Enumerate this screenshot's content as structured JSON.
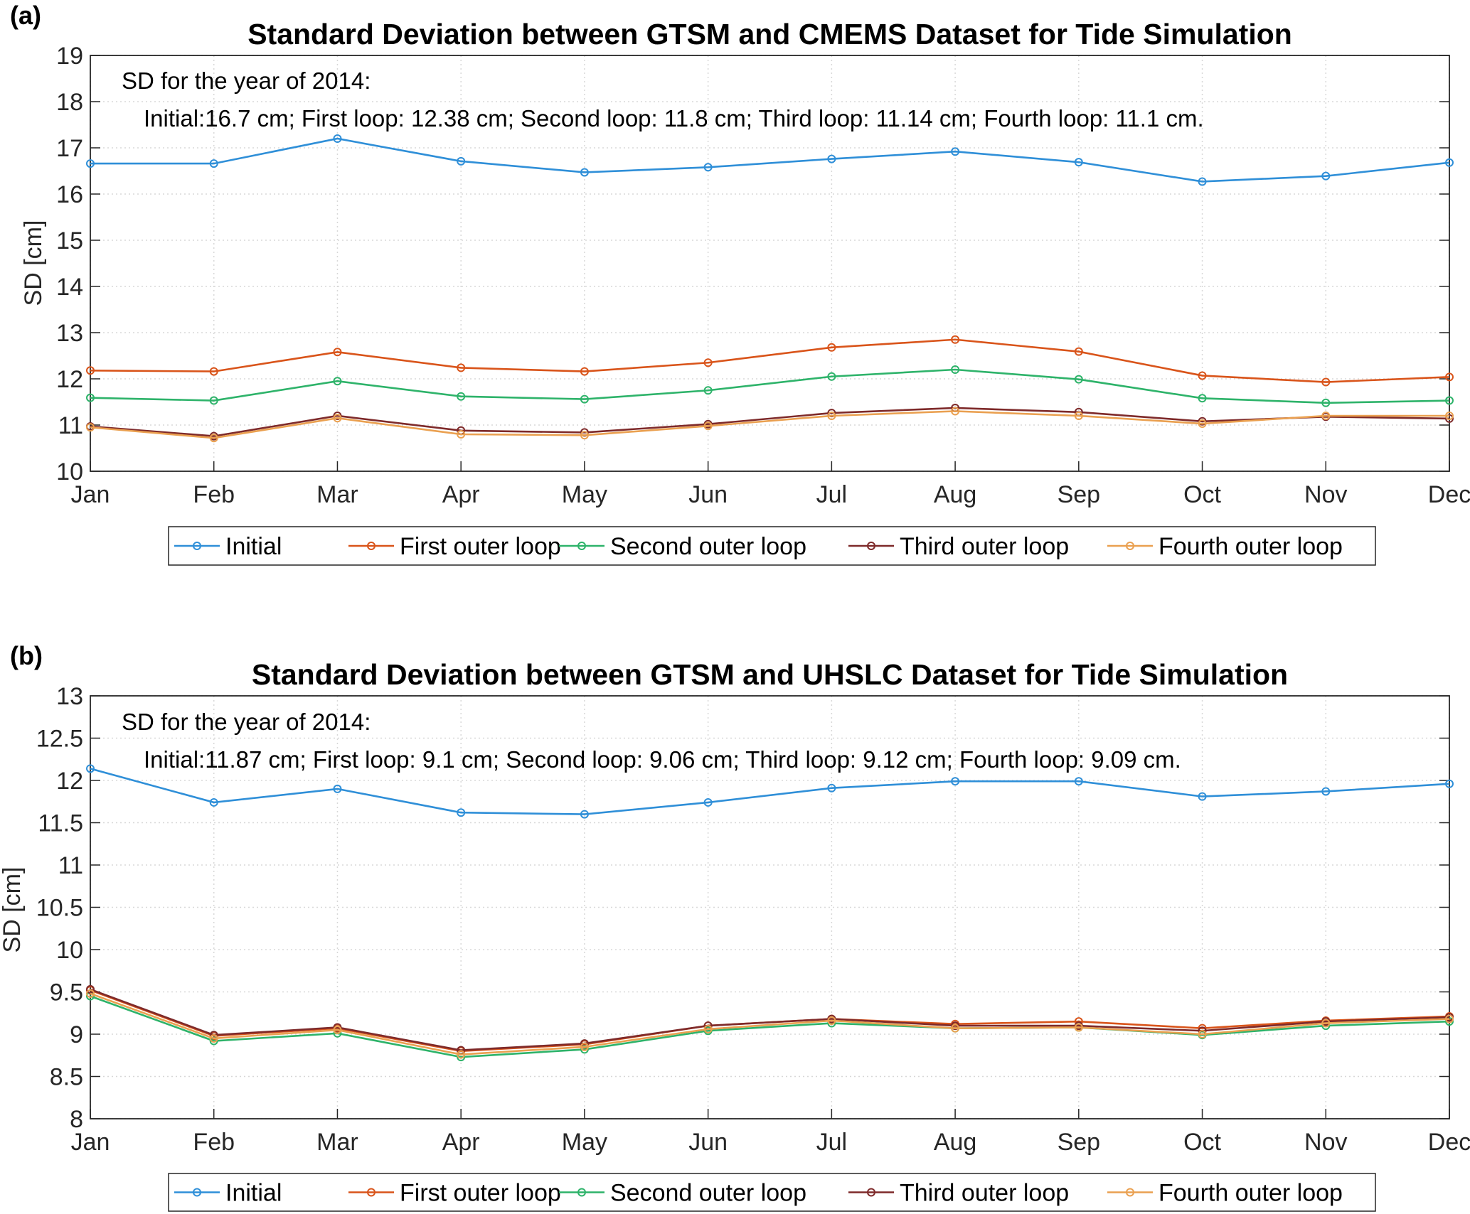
{
  "chart_data": [
    {
      "type": "line",
      "panel_label": "(a)",
      "title": "Standard Deviation between GTSM and CMEMS Dataset for Tide Simulation",
      "annotation": [
        "SD for the year of 2014:",
        "Initial:16.7 cm; First loop: 12.38 cm; Second loop: 11.8 cm; Third loop: 11.14 cm; Fourth loop: 11.1 cm."
      ],
      "xlabel": "",
      "ylabel": "SD [cm]",
      "ylim": [
        10,
        19
      ],
      "yticks": [
        "10",
        "11",
        "12",
        "13",
        "14",
        "15",
        "16",
        "17",
        "18",
        "19"
      ],
      "grid": true,
      "legend_placement": "bottom-outside",
      "categories": [
        "Jan",
        "Feb",
        "Mar",
        "Apr",
        "May",
        "Jun",
        "Jul",
        "Aug",
        "Sep",
        "Oct",
        "Nov",
        "Dec"
      ],
      "series": [
        {
          "name": "Initial",
          "color": "#2f8fd8",
          "values": [
            16.66,
            16.66,
            17.2,
            16.71,
            16.47,
            16.58,
            16.76,
            16.92,
            16.69,
            16.27,
            16.39,
            16.68
          ]
        },
        {
          "name": "First outer loop",
          "color": "#d9541a",
          "values": [
            12.18,
            12.16,
            12.58,
            12.24,
            12.16,
            12.35,
            12.68,
            12.85,
            12.59,
            12.07,
            11.93,
            12.04
          ]
        },
        {
          "name": "Second outer loop",
          "color": "#2eb36a",
          "values": [
            11.59,
            11.53,
            11.95,
            11.62,
            11.56,
            11.75,
            12.05,
            12.2,
            11.99,
            11.58,
            11.48,
            11.53
          ]
        },
        {
          "name": "Third outer loop",
          "color": "#7e2a2a",
          "values": [
            10.97,
            10.76,
            11.2,
            10.88,
            10.84,
            11.02,
            11.26,
            11.37,
            11.28,
            11.08,
            11.18,
            11.14
          ]
        },
        {
          "name": "Fourth outer loop",
          "color": "#eaa050",
          "values": [
            10.95,
            10.72,
            11.15,
            10.8,
            10.78,
            10.98,
            11.2,
            11.3,
            11.2,
            11.03,
            11.2,
            11.2
          ]
        }
      ]
    },
    {
      "type": "line",
      "panel_label": "(b)",
      "title": "Standard Deviation between GTSM and UHSLC Dataset for Tide Simulation",
      "annotation": [
        "SD for the year of 2014:",
        "Initial:11.87 cm; First loop: 9.1 cm; Second loop: 9.06 cm; Third loop: 9.12 cm; Fourth loop: 9.09 cm."
      ],
      "xlabel": "",
      "ylabel": "SD [cm]",
      "ylim": [
        8,
        13
      ],
      "yticks": [
        "8",
        "8.5",
        "9",
        "9.5",
        "10",
        "10.5",
        "11",
        "11.5",
        "12",
        "12.5",
        "13"
      ],
      "grid": true,
      "legend_placement": "bottom-outside",
      "categories": [
        "Jan",
        "Feb",
        "Mar",
        "Apr",
        "May",
        "Jun",
        "Jul",
        "Aug",
        "Sep",
        "Oct",
        "Nov",
        "Dec"
      ],
      "series": [
        {
          "name": "Initial",
          "color": "#2f8fd8",
          "values": [
            12.14,
            11.74,
            11.9,
            11.62,
            11.6,
            11.74,
            11.91,
            11.99,
            11.99,
            11.81,
            11.87,
            11.96
          ]
        },
        {
          "name": "First outer loop",
          "color": "#d9541a",
          "values": [
            9.52,
            8.98,
            9.07,
            8.8,
            8.88,
            9.1,
            9.18,
            9.12,
            9.15,
            9.07,
            9.16,
            9.21
          ]
        },
        {
          "name": "Second outer loop",
          "color": "#2eb36a",
          "values": [
            9.45,
            8.92,
            9.01,
            8.73,
            8.82,
            9.04,
            9.13,
            9.07,
            9.08,
            8.99,
            9.1,
            9.15
          ]
        },
        {
          "name": "Third outer loop",
          "color": "#7e2a2a",
          "values": [
            9.53,
            8.99,
            9.08,
            8.81,
            8.89,
            9.1,
            9.18,
            9.1,
            9.1,
            9.04,
            9.15,
            9.2
          ]
        },
        {
          "name": "Fourth outer loop",
          "color": "#eaa050",
          "values": [
            9.48,
            8.95,
            9.05,
            8.76,
            8.85,
            9.06,
            9.16,
            9.07,
            9.08,
            9.0,
            9.13,
            9.18
          ]
        }
      ]
    }
  ]
}
